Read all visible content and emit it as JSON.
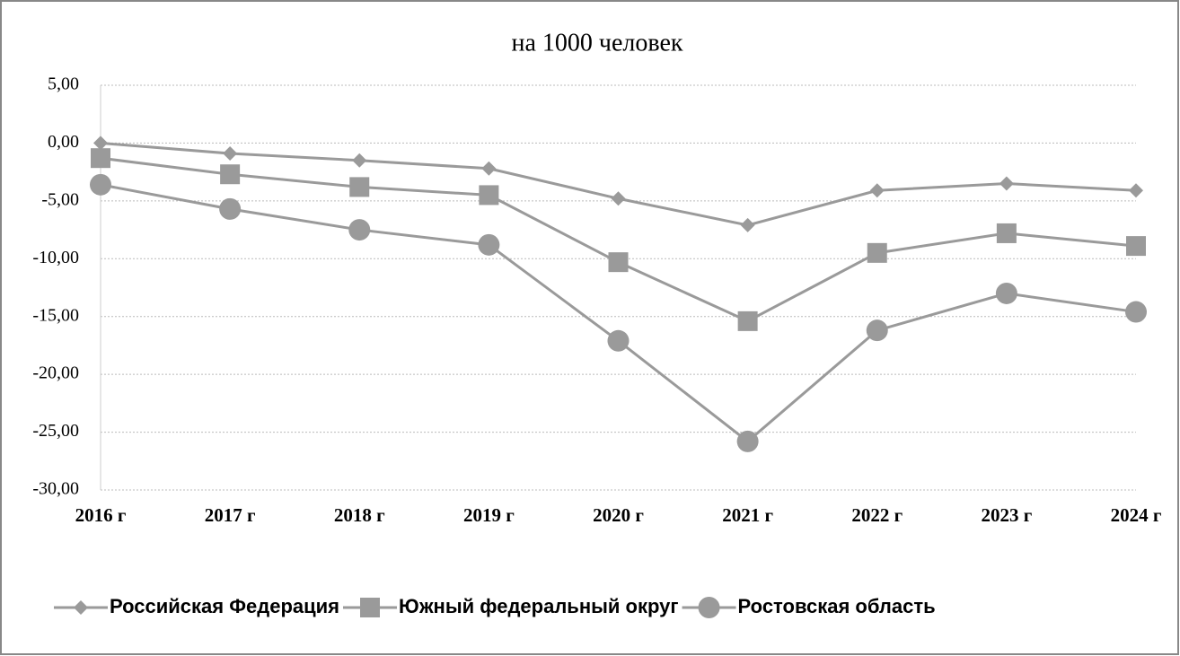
{
  "chart_data": {
    "type": "line",
    "title": "на 1000 человек",
    "categories": [
      "2016 г",
      "2017 г",
      "2018 г",
      "2019 г",
      "2020 г",
      "2021 г",
      "2022 г",
      "2023 г",
      "2024 г"
    ],
    "series": [
      {
        "name": "Российская Федерация",
        "color": "#9a9a9a",
        "marker": "diamond",
        "values": [
          0,
          -0.9,
          -1.5,
          -2.2,
          -4.8,
          -7.1,
          -4.1,
          -3.5,
          -4.1
        ]
      },
      {
        "name": "Южный федеральный округ",
        "color": "#9a9a9a",
        "marker": "square",
        "values": [
          -1.3,
          -2.7,
          -3.8,
          -4.5,
          -10.3,
          -15.4,
          -9.5,
          -7.8,
          -8.9
        ]
      },
      {
        "name": "Ростовская область",
        "color": "#9a9a9a",
        "marker": "circle",
        "values": [
          -3.6,
          -5.7,
          -7.5,
          -8.8,
          -17.1,
          -25.8,
          -16.2,
          -13.0,
          -14.6
        ]
      }
    ],
    "ylim": [
      -30,
      5
    ],
    "yticks": [
      {
        "value": 5,
        "label": "5,00"
      },
      {
        "value": 0,
        "label": "0,00"
      },
      {
        "value": -5,
        "label": "-5,00"
      },
      {
        "value": -10,
        "label": "-10,00"
      },
      {
        "value": -15,
        "label": "-15,00"
      },
      {
        "value": -20,
        "label": "-20,00"
      },
      {
        "value": -25,
        "label": "-25,00"
      },
      {
        "value": -30,
        "label": "-30,00"
      }
    ],
    "grid": true,
    "legend": "bottom"
  }
}
